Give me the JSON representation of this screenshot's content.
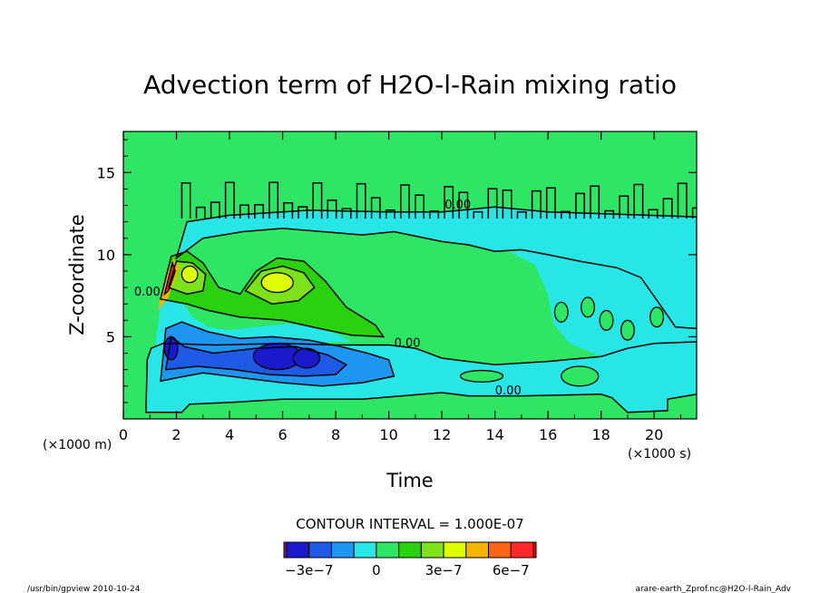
{
  "chart_data": {
    "type": "heatmap",
    "title": "Advection term of H2O-l-Rain mixing ratio",
    "xlabel": "Time",
    "ylabel": "Z-coordinate",
    "x_unit": "(×1000 s)",
    "y_unit": "(×1000 m)",
    "xlim": [
      0,
      21.6
    ],
    "ylim": [
      0,
      17.5
    ],
    "x_ticks": [
      0,
      2,
      4,
      6,
      8,
      10,
      12,
      14,
      16,
      18,
      20
    ],
    "y_ticks": [
      5,
      10,
      15
    ],
    "x_tick_labels": [
      "0",
      "2",
      "4",
      "6",
      "8",
      "10",
      "12",
      "14",
      "16",
      "18",
      "20"
    ],
    "y_tick_labels": [
      "5",
      "10",
      "15"
    ],
    "contour_interval_text": "CONTOUR INTERVAL = 1.000E-07",
    "contour_labels": [
      {
        "text": "0.00",
        "x": 0.9,
        "y": 7.5
      },
      {
        "text": "0.00",
        "x": 10.7,
        "y": 4.4
      },
      {
        "text": "0.00",
        "x": 14.5,
        "y": 1.5
      },
      {
        "text": "0.00",
        "x": 12.6,
        "y": 12.8
      }
    ],
    "colorbar": {
      "levels": [
        -4e-07,
        -3e-07,
        -2e-07,
        -1e-07,
        0,
        1e-07,
        2e-07,
        3e-07,
        4e-07,
        5e-07,
        6e-07,
        7e-07
      ],
      "colors": [
        "#1a1acc",
        "#1e5ae6",
        "#1e96f0",
        "#28e6e6",
        "#2ee664",
        "#2ad10f",
        "#7ee21a",
        "#dfff00",
        "#f5b400",
        "#fa6414",
        "#ff2828"
      ],
      "tick_labels": [
        "−3e−7",
        "0",
        "3e−7",
        "6e−7"
      ],
      "tick_values": [
        -3e-07,
        0,
        3e-07,
        6e-07
      ]
    },
    "background_color": "#2ee664",
    "features": [
      {
        "kind": "region",
        "level": "negative-weak",
        "desc": "near-zero negative lower band",
        "x": [
          1.0,
          21.6
        ],
        "y": [
          0.3,
          4.6
        ]
      },
      {
        "kind": "region",
        "level": "negative-weak",
        "desc": "upper negative band",
        "x": [
          2.0,
          21.6
        ],
        "y": [
          10.0,
          13.0
        ]
      },
      {
        "kind": "blob",
        "level": "negative-strong",
        "x": 5.8,
        "y": 3.6,
        "value": -3e-07
      },
      {
        "kind": "blob",
        "level": "negative-strong",
        "x": 1.8,
        "y": 4.3,
        "value": -3e-07
      },
      {
        "kind": "blob",
        "level": "positive",
        "x": 5.8,
        "y": 8.3,
        "value": 3e-07
      },
      {
        "kind": "blob",
        "level": "positive-strong",
        "x": 1.9,
        "y": 9.1,
        "value": 6e-07
      }
    ]
  },
  "footer": {
    "left": "/usr/bin/gpview  2010-10-24",
    "right": "arare-earth_Zprof.nc@H2O-l-Rain_Adv"
  }
}
